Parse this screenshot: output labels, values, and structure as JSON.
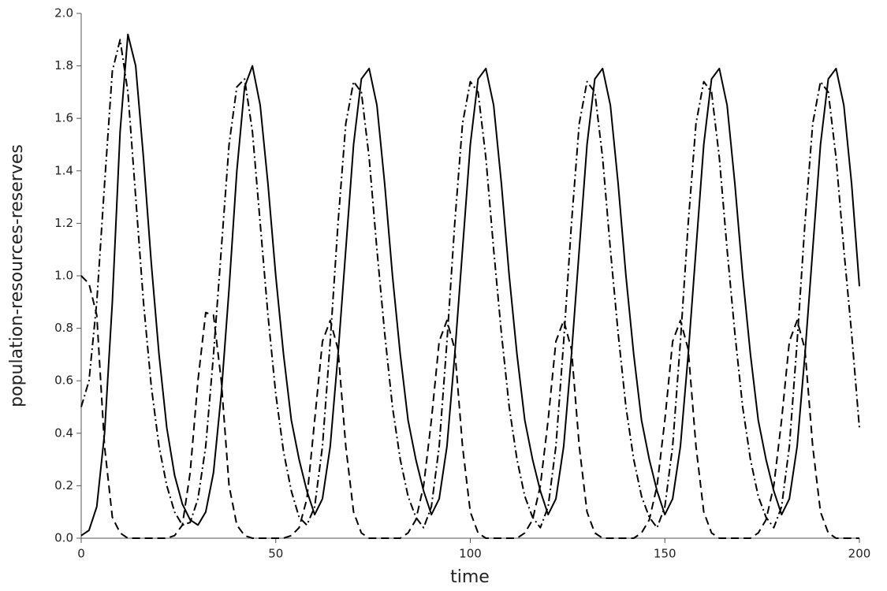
{
  "chart_data": {
    "type": "line",
    "x_label": "time",
    "y_label": "population-resources-reserves",
    "x": [
      0,
      2,
      4,
      6,
      8,
      10,
      12,
      14,
      16,
      18,
      20,
      22,
      24,
      26,
      28,
      30,
      32,
      34,
      36,
      38,
      40,
      42,
      44,
      46,
      48,
      50,
      52,
      54,
      56,
      58,
      60,
      62,
      64,
      66,
      68,
      70,
      72,
      74,
      76,
      78,
      80,
      82,
      84,
      86,
      88,
      90,
      92,
      94,
      96,
      98,
      100,
      102,
      104,
      106,
      108,
      110,
      112,
      114,
      116,
      118,
      120,
      122,
      124,
      126,
      128,
      130,
      132,
      134,
      136,
      138,
      140,
      142,
      144,
      146,
      148,
      150,
      152,
      154,
      156,
      158,
      160,
      162,
      164,
      166,
      168,
      170,
      172,
      174,
      176,
      178,
      180,
      182,
      184,
      186,
      188,
      190,
      192,
      194,
      196,
      198,
      200
    ],
    "series": [
      {
        "color": "#000000",
        "dash": "solid",
        "values": [
          0.01,
          0.03,
          0.12,
          0.4,
          0.9,
          1.55,
          1.92,
          1.8,
          1.45,
          1.05,
          0.7,
          0.42,
          0.24,
          0.13,
          0.07,
          0.05,
          0.1,
          0.25,
          0.55,
          0.95,
          1.4,
          1.72,
          1.8,
          1.65,
          1.35,
          1.0,
          0.7,
          0.45,
          0.3,
          0.18,
          0.09,
          0.15,
          0.35,
          0.7,
          1.1,
          1.5,
          1.75,
          1.79,
          1.65,
          1.35,
          1.0,
          0.7,
          0.45,
          0.3,
          0.18,
          0.09,
          0.15,
          0.35,
          0.7,
          1.1,
          1.5,
          1.75,
          1.79,
          1.65,
          1.35,
          1.0,
          0.7,
          0.45,
          0.3,
          0.18,
          0.09,
          0.15,
          0.35,
          0.7,
          1.1,
          1.5,
          1.75,
          1.79,
          1.65,
          1.35,
          1.0,
          0.7,
          0.45,
          0.3,
          0.18,
          0.09,
          0.15,
          0.35,
          0.7,
          1.1,
          1.5,
          1.75,
          1.79,
          1.65,
          1.35,
          1.0,
          0.7,
          0.45,
          0.3,
          0.18,
          0.09,
          0.15,
          0.35,
          0.7,
          1.1,
          1.5,
          1.75,
          1.79,
          1.65,
          1.35,
          0.96
        ]
      },
      {
        "color": "#000000",
        "dash": "dashed",
        "values": [
          1.0,
          0.97,
          0.85,
          0.35,
          0.08,
          0.02,
          0,
          0,
          0,
          0,
          0,
          0,
          0.01,
          0.05,
          0.25,
          0.6,
          0.86,
          0.85,
          0.6,
          0.2,
          0.05,
          0.01,
          0,
          0,
          0,
          0,
          0,
          0.01,
          0.04,
          0.15,
          0.45,
          0.75,
          0.83,
          0.72,
          0.35,
          0.1,
          0.02,
          0,
          0,
          0,
          0,
          0,
          0.02,
          0.07,
          0.2,
          0.45,
          0.75,
          0.83,
          0.72,
          0.35,
          0.1,
          0.02,
          0,
          0,
          0,
          0,
          0,
          0.02,
          0.07,
          0.2,
          0.45,
          0.75,
          0.83,
          0.72,
          0.35,
          0.1,
          0.02,
          0,
          0,
          0,
          0,
          0,
          0.02,
          0.07,
          0.2,
          0.45,
          0.75,
          0.83,
          0.72,
          0.35,
          0.1,
          0.02,
          0,
          0,
          0,
          0,
          0,
          0.02,
          0.07,
          0.2,
          0.45,
          0.75,
          0.83,
          0.72,
          0.35,
          0.1,
          0.02,
          0,
          0,
          0,
          0
        ]
      },
      {
        "color": "#000000",
        "dash": "dashdot",
        "values": [
          0.5,
          0.6,
          0.9,
          1.35,
          1.78,
          1.9,
          1.7,
          1.3,
          0.9,
          0.58,
          0.35,
          0.2,
          0.1,
          0.05,
          0.06,
          0.15,
          0.35,
          0.7,
          1.1,
          1.5,
          1.72,
          1.75,
          1.55,
          1.2,
          0.85,
          0.55,
          0.33,
          0.18,
          0.08,
          0.05,
          0.12,
          0.35,
          0.75,
          1.2,
          1.58,
          1.74,
          1.7,
          1.45,
          1.1,
          0.78,
          0.5,
          0.3,
          0.16,
          0.08,
          0.04,
          0.12,
          0.35,
          0.75,
          1.2,
          1.58,
          1.74,
          1.7,
          1.45,
          1.1,
          0.78,
          0.5,
          0.3,
          0.16,
          0.08,
          0.04,
          0.12,
          0.35,
          0.75,
          1.2,
          1.58,
          1.74,
          1.7,
          1.45,
          1.1,
          0.78,
          0.5,
          0.3,
          0.16,
          0.08,
          0.04,
          0.12,
          0.35,
          0.75,
          1.2,
          1.58,
          1.74,
          1.7,
          1.45,
          1.1,
          0.78,
          0.5,
          0.3,
          0.16,
          0.08,
          0.04,
          0.12,
          0.35,
          0.75,
          1.2,
          1.58,
          1.74,
          1.7,
          1.45,
          1.1,
          0.78,
          0.42
        ]
      }
    ],
    "xlim": [
      0,
      200
    ],
    "xticks": [
      0,
      50,
      100,
      150,
      200
    ],
    "ylim": [
      0,
      2
    ],
    "yticks": [
      {
        "value": 0,
        "label": "0.0"
      },
      0.2,
      0.4,
      0.6,
      0.8,
      {
        "value": 1,
        "label": "1.0"
      },
      1.2,
      1.4,
      1.6,
      1.8,
      {
        "value": 2,
        "label": "2.0"
      }
    ],
    "grid": false
  }
}
